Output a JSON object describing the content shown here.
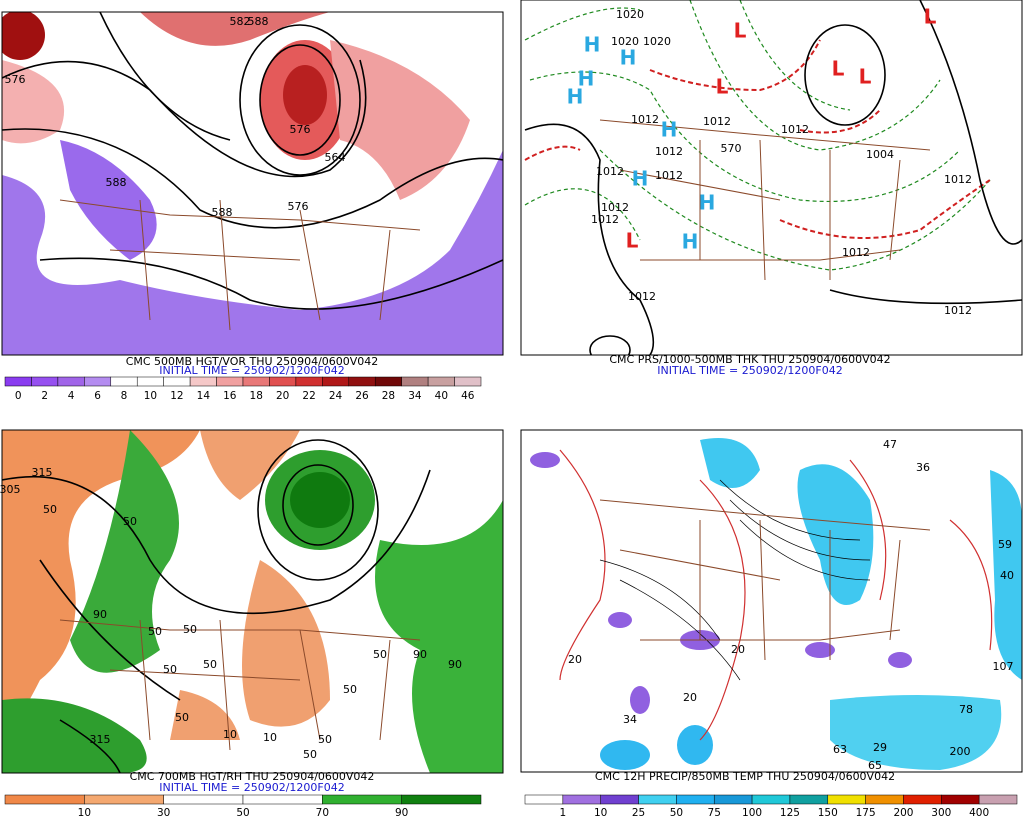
{
  "panels": [
    {
      "caption": "CMC 500MB HGT/VOR THU 250904/0600V042",
      "initial": "INITIAL TIME = 250902/1200F042",
      "colorbar": [
        0,
        2,
        4,
        6,
        8,
        10,
        12,
        14,
        16,
        18,
        20,
        22,
        24,
        26,
        28,
        34,
        40,
        46
      ],
      "map_labels": [
        "576",
        "588",
        "588",
        "576",
        "582",
        "576",
        "588",
        "564"
      ]
    },
    {
      "caption": "CMC PRS/1000-500MB THK THU 250904/0600V042",
      "initial": "INITIAL TIME = 250902/1200F042",
      "map_labels": [
        "H",
        "H",
        "H",
        "H",
        "H",
        "H",
        "H",
        "H",
        "L",
        "L",
        "L",
        "L",
        "L",
        "L",
        "1012",
        "1012",
        "1012",
        "1012",
        "1012",
        "1012",
        "1012",
        "1012",
        "1012",
        "1012",
        "1012",
        "1012",
        "570",
        "1020",
        "1020",
        "1020",
        "1004"
      ]
    },
    {
      "caption": "CMC 700MB HGT/RH THU 250904/0600V042",
      "initial": "INITIAL TIME = 250902/1200F042",
      "colorbar": [
        10,
        30,
        50,
        70,
        90
      ],
      "map_labels": [
        "315",
        "305",
        "50",
        "50",
        "50",
        "50",
        "50",
        "50",
        "90",
        "90",
        "90",
        "50",
        "50",
        "50",
        "50",
        "315",
        "10",
        "10",
        "50"
      ]
    },
    {
      "caption": "CMC 12H PRECIP/850MB TEMP THU 250904/0600V042",
      "colorbar": [
        1,
        10,
        25,
        50,
        75,
        100,
        125,
        150,
        175,
        200,
        300,
        400
      ],
      "map_labels": [
        "47",
        "36",
        "34",
        "78",
        "63",
        "29",
        "200",
        "107",
        "59",
        "40",
        "65",
        "20",
        "20",
        "20"
      ]
    }
  ]
}
